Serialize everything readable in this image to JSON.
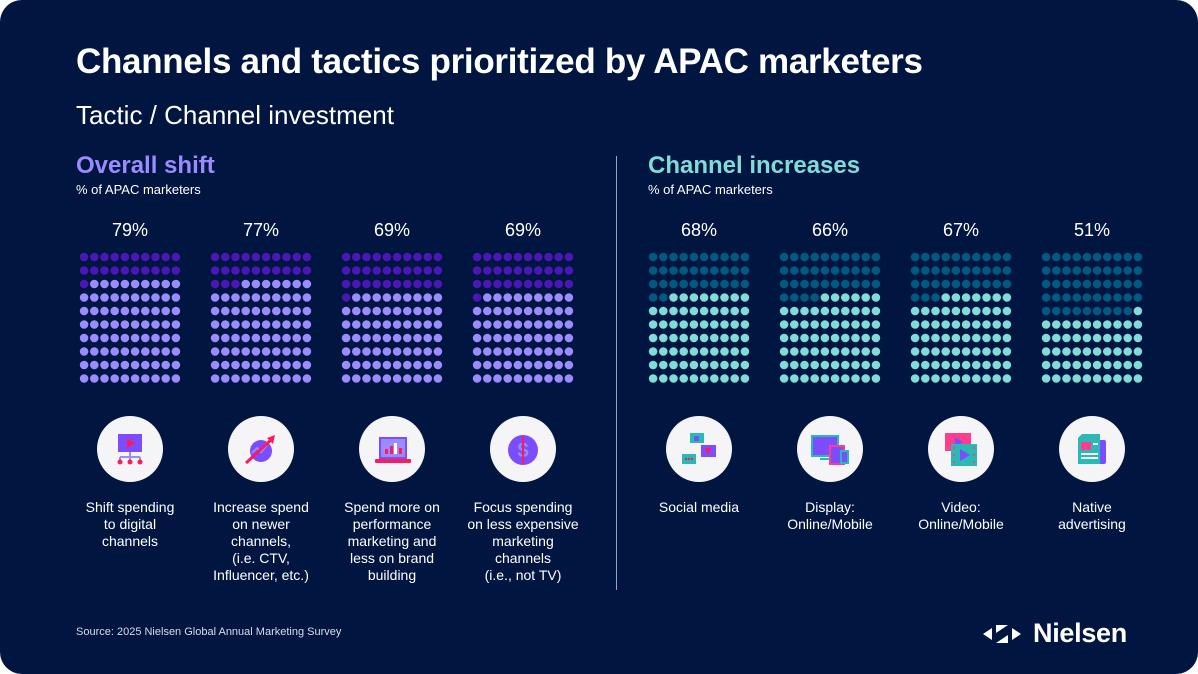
{
  "title": "Channels and tactics prioritized by APAC marketers",
  "subtitle": "Tactic / Channel investment",
  "colors": {
    "background": "#001641",
    "purple_dark": "#4a16b5",
    "purple_light": "#9a8cff",
    "teal_dark": "#005a80",
    "teal_light": "#7fdcd8",
    "overall_title": "#9a8cff",
    "channel_title": "#7fdcd8"
  },
  "chart_data": [
    {
      "type": "waffle",
      "title": "Overall shift",
      "subtitle": "% of APAC marketers",
      "categories": [
        "Shift spending to digital channels",
        "Increase spend on newer channels, (i.e. CTV, Influencer, etc.)",
        "Spend more on performance marketing and less on brand building",
        "Focus spending on less expensive marketing channels (i.e., not TV)"
      ],
      "values": [
        79,
        77,
        69,
        69
      ],
      "data_labels": [
        "79%",
        "77%",
        "69%",
        "69%"
      ],
      "label_lines": [
        [
          "Shift spending",
          "to digital",
          "channels"
        ],
        [
          "Increase spend",
          "on newer",
          "channels,",
          "(i.e. CTV,",
          "Influencer, etc.)"
        ],
        [
          "Spend more on",
          "performance",
          "marketing and",
          "less on brand",
          "building"
        ],
        [
          "Focus spending",
          "on less expensive",
          "marketing",
          "channels",
          "(i.e., not TV)"
        ]
      ],
      "icons": [
        "video-distribution-icon",
        "growth-arrow-icon",
        "laptop-chart-icon",
        "dollar-coin-icon"
      ],
      "grid": "10x10"
    },
    {
      "type": "waffle",
      "title": "Channel increases",
      "subtitle": "% of APAC marketers",
      "categories": [
        "Social media",
        "Display: Online/Mobile",
        "Video: Online/Mobile",
        "Native advertising"
      ],
      "values": [
        68,
        66,
        67,
        51
      ],
      "data_labels": [
        "68%",
        "66%",
        "67%",
        "51%"
      ],
      "label_lines": [
        [
          "Social media"
        ],
        [
          "Display:",
          "Online/Mobile"
        ],
        [
          "Video:",
          "Online/Mobile"
        ],
        [
          "Native",
          "advertising"
        ]
      ],
      "icons": [
        "chat-bubbles-icon",
        "devices-icon",
        "video-film-icon",
        "newspaper-icon"
      ],
      "grid": "10x10"
    }
  ],
  "source": "Source: 2025 Nielsen Global Annual Marketing Survey",
  "logo": "Nielsen"
}
